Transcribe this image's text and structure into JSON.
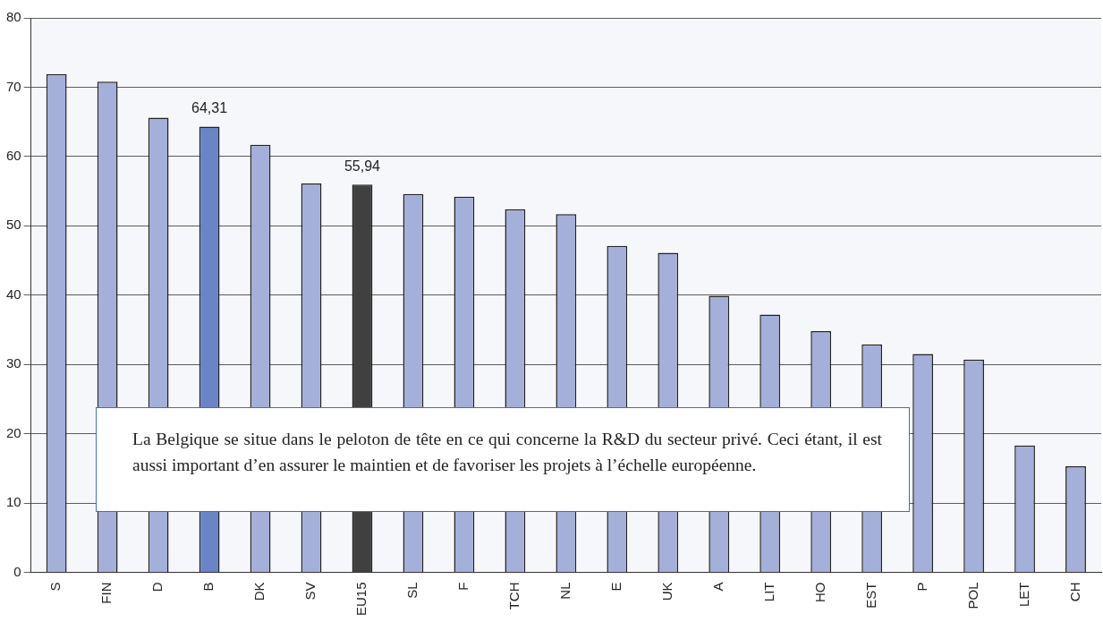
{
  "chart_data": {
    "type": "bar",
    "categories": [
      "S",
      "FIN",
      "D",
      "B",
      "DK",
      "SV",
      "EU15",
      "SL",
      "F",
      "TCH",
      "NL",
      "E",
      "UK",
      "A",
      "LIT",
      "HO",
      "EST",
      "P",
      "POL",
      "LET",
      "CH"
    ],
    "values": [
      71.9,
      70.8,
      65.6,
      64.31,
      61.7,
      56.1,
      55.94,
      54.6,
      54.2,
      52.4,
      51.7,
      47.1,
      46.1,
      39.9,
      37.2,
      34.8,
      32.9,
      31.5,
      30.7,
      18.3,
      15.3
    ],
    "colors": [
      "#a4b0d9",
      "#a4b0d9",
      "#a4b0d9",
      "#6b84c8",
      "#a4b0d9",
      "#a4b0d9",
      "#404040",
      "#a4b0d9",
      "#a4b0d9",
      "#a4b0d9",
      "#a4b0d9",
      "#a4b0d9",
      "#a4b0d9",
      "#a4b0d9",
      "#a4b0d9",
      "#a4b0d9",
      "#a4b0d9",
      "#a4b0d9",
      "#a4b0d9",
      "#a4b0d9",
      "#a4b0d9"
    ],
    "value_labels": [
      null,
      null,
      null,
      "64,31",
      null,
      null,
      "55,94",
      null,
      null,
      null,
      null,
      null,
      null,
      null,
      null,
      null,
      null,
      null,
      null,
      null,
      null
    ],
    "ylim": [
      0,
      80
    ],
    "yticks": [
      0,
      10,
      20,
      30,
      40,
      50,
      60,
      70,
      80
    ],
    "grid": "y",
    "annotations": [
      "La Belgique se situe dans le peloton de tête en ce qui concerne la R&D du secteur privé. Ceci étant, il est aussi important d’en assurer le maintien et de favoriser les projets à l’échelle européenne."
    ]
  }
}
